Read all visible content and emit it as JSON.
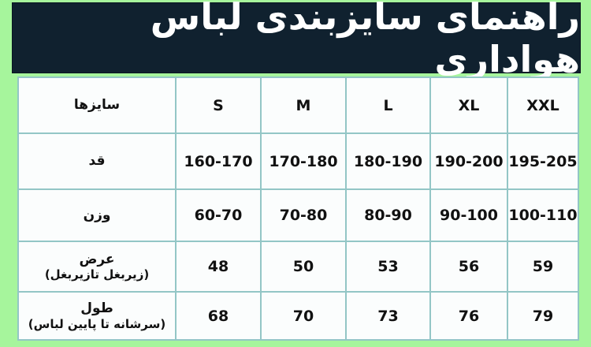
{
  "title": "راهنمای سایزبندی لباس هواداری",
  "table": {
    "header_label": "سایزها",
    "sizes": [
      "S",
      "M",
      "L",
      "XL",
      "XXL"
    ],
    "rows": [
      {
        "label": "قد",
        "sublabel": "",
        "values": [
          "160-170",
          "170-180",
          "180-190",
          "190-200",
          "195-205"
        ]
      },
      {
        "label": "وزن",
        "sublabel": "",
        "values": [
          "60-70",
          "70-80",
          "80-90",
          "90-100",
          "100-110"
        ]
      },
      {
        "label": "عرض",
        "sublabel": "(زیربغل تازیربغل)",
        "values": [
          "48",
          "50",
          "53",
          "56",
          "59"
        ]
      },
      {
        "label": "طول",
        "sublabel": "(سرشانه تا پایین لباس)",
        "values": [
          "68",
          "70",
          "73",
          "76",
          "79"
        ]
      }
    ]
  },
  "colors": {
    "background": "#a6f59c",
    "title_bg": "#10212f",
    "grid": "#93c6c6"
  }
}
